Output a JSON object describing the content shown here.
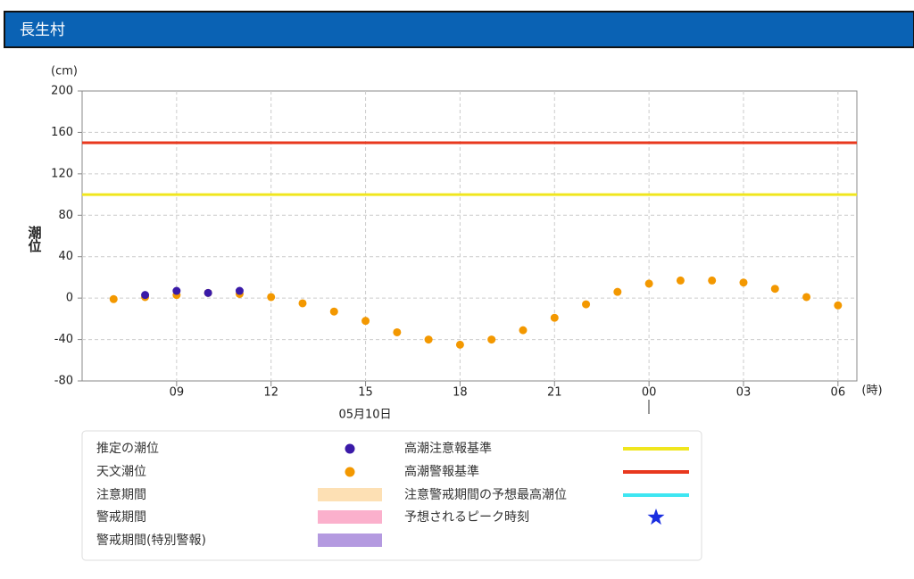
{
  "header": {
    "title": "長生村"
  },
  "chart_data": {
    "type": "scatter",
    "y_label": "潮位",
    "y_unit": "(cm)",
    "x_unit": "(時)",
    "date_label": "05月10日",
    "xlim": [
      6,
      30.6
    ],
    "xticks": [
      {
        "value": 9,
        "label": "09"
      },
      12,
      15,
      18,
      21,
      {
        "value": 24,
        "label": "00"
      },
      {
        "value": 27,
        "label": "03"
      },
      {
        "value": 30,
        "label": "06"
      }
    ],
    "ylim": [
      -80,
      200
    ],
    "yticks": [
      -80,
      -40,
      0,
      40,
      80,
      120,
      160,
      200
    ],
    "grid": true,
    "series": [
      {
        "name": "推定の潮位",
        "color": "#3a1aa8",
        "x": [
          8,
          9,
          10,
          11
        ],
        "values": [
          3,
          7,
          5,
          7
        ]
      },
      {
        "name": "天文潮位",
        "color": "#f39800",
        "x": [
          7,
          8,
          9,
          10,
          11,
          12,
          13,
          14,
          15,
          16,
          17,
          18,
          19,
          20,
          21,
          22,
          23,
          24,
          25,
          26,
          27,
          28,
          29,
          30
        ],
        "values": [
          -1,
          1,
          3,
          5,
          4,
          1,
          -5,
          -13,
          -22,
          -33,
          -40,
          -45,
          -40,
          -31,
          -19,
          -6,
          6,
          14,
          17,
          17,
          15,
          9,
          1,
          -7
        ]
      }
    ],
    "reference_lines": [
      {
        "name": "高潮注意報基準",
        "color": "#f0e61e",
        "value": 100
      },
      {
        "name": "高潮警報基準",
        "color": "#e8381e",
        "value": 150
      }
    ],
    "periods": [
      {
        "name": "注意期間",
        "color": "#fde0b4"
      },
      {
        "name": "警戒期間",
        "color": "#fbb0cc"
      },
      {
        "name": "警戒期間(特別警報)",
        "color": "#b49ae0"
      }
    ],
    "extra_legend": [
      {
        "name": "注意警戒期間の予想最高潮位",
        "color": "#3ee6f2",
        "marker": "line"
      },
      {
        "name": "予想されるピーク時刻",
        "color": "#1a2ee0",
        "marker": "star"
      }
    ]
  }
}
